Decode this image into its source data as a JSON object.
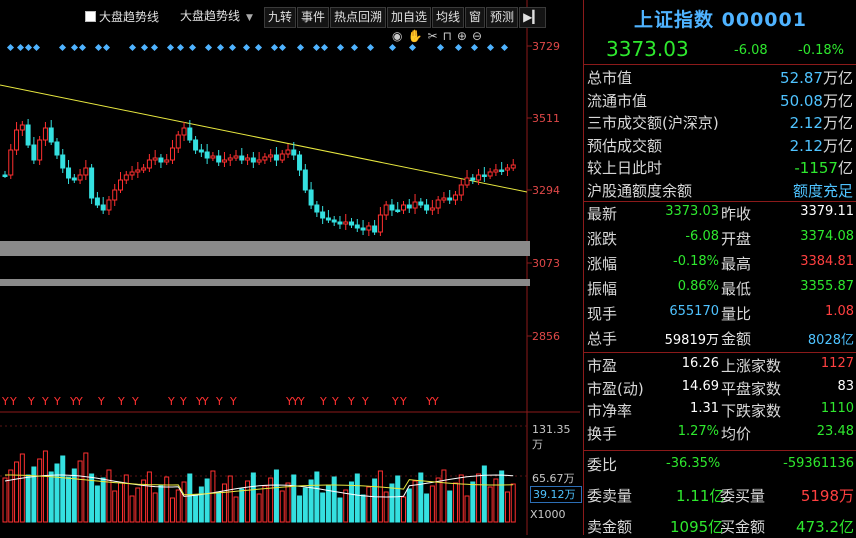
{
  "toolbar": {
    "checkbox_label": "大盘趋势线",
    "dropdown_label": "大盘趋势线",
    "buttons": [
      "九转",
      "事件",
      "热点回溯",
      "加自选",
      "均线",
      "窗",
      "预测"
    ]
  },
  "chart_data": {
    "type": "candlestick",
    "y_ticks": [
      "3729",
      "3511",
      "3294",
      "3073",
      "2856"
    ],
    "volume_ticks": [
      "131.35万",
      "65.67万"
    ],
    "volume_current": "39.12万",
    "volume_unit": "X1000",
    "signal_marker": "Y"
  },
  "quote": {
    "title": "上证指数 000001",
    "price": "3373.03",
    "change": "-6.08",
    "change_pct": "-0.18%",
    "summary": [
      {
        "label": "总市值",
        "value": "52.87",
        "unit": "万亿"
      },
      {
        "label": "流通市值",
        "value": "50.08",
        "unit": "万亿"
      },
      {
        "label": "三市成交额(沪深京)",
        "value": "2.12",
        "unit": "万亿"
      },
      {
        "label": "预估成交额",
        "value": "2.12",
        "unit": "万亿"
      },
      {
        "label": "较上日此时",
        "value": "-1157",
        "unit": "亿"
      },
      {
        "label": "沪股通额度余额",
        "value": "额度充足",
        "unit": ""
      }
    ],
    "stats": [
      {
        "l1": "最新",
        "v1": "3373.03",
        "l2": "昨收",
        "v2": "3379.11"
      },
      {
        "l1": "涨跌",
        "v1": "-6.08",
        "l2": "开盘",
        "v2": "3374.08"
      },
      {
        "l1": "涨幅",
        "v1": "-0.18%",
        "l2": "最高",
        "v2": "3384.81"
      },
      {
        "l1": "振幅",
        "v1": "0.86%",
        "l2": "最低",
        "v2": "3355.87"
      },
      {
        "l1": "现手",
        "v1": "655170",
        "l2": "量比",
        "v2": "1.08"
      },
      {
        "l1": "总手",
        "v1": "59819万",
        "l2": "金额",
        "v2": "8028亿"
      },
      {
        "l1": "市盈",
        "v1": "16.26",
        "l2": "上涨家数",
        "v2": "1127"
      },
      {
        "l1": "市盈(动)",
        "v1": "14.69",
        "l2": "平盘家数",
        "v2": "83"
      },
      {
        "l1": "市净率",
        "v1": "1.31",
        "l2": "下跌家数",
        "v2": "1110"
      },
      {
        "l1": "换手",
        "v1": "1.27%",
        "l2": "均价",
        "v2": "23.48"
      }
    ],
    "wei": {
      "label": "委比",
      "pct": "-36.35%",
      "diff": "-59361136"
    },
    "sell_vol": {
      "label": "委卖量",
      "value": "1.11亿"
    },
    "buy_vol": {
      "label": "委买量",
      "value": "5198万"
    },
    "sell_amt": {
      "label": "卖金额",
      "value": "1095亿"
    },
    "buy_amt": {
      "label": "买金额",
      "value": "473.2亿"
    }
  }
}
